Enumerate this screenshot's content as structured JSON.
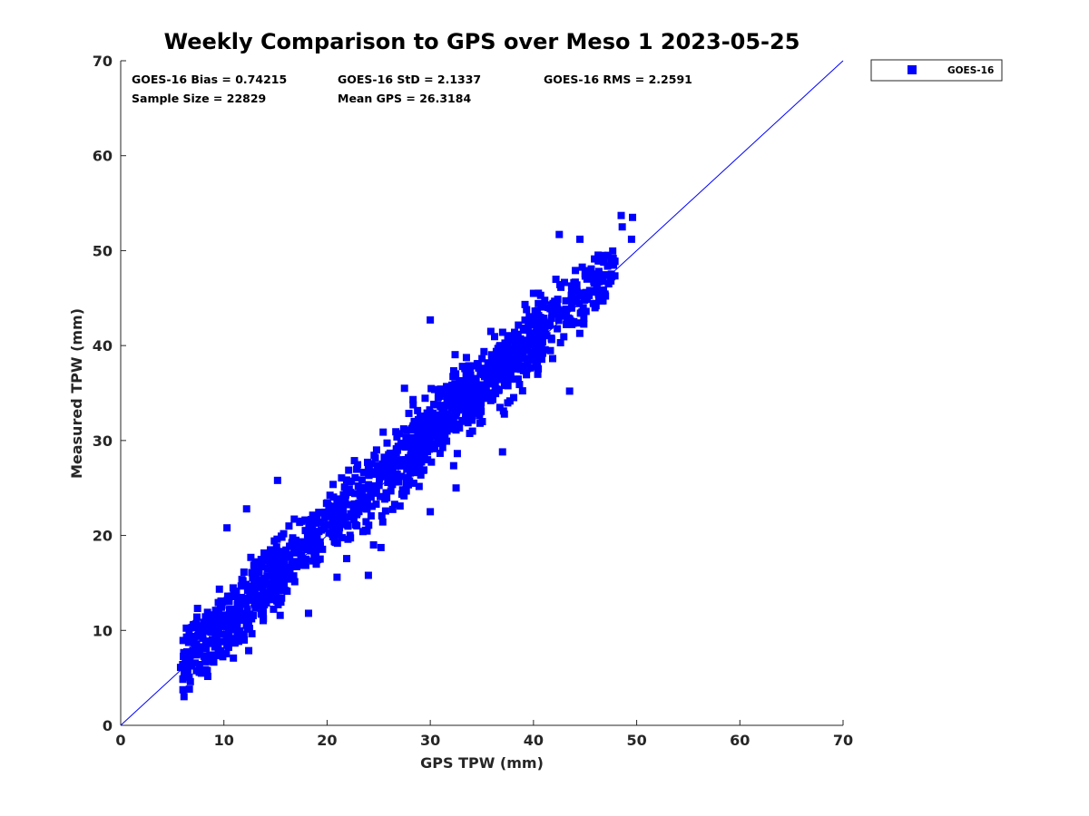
{
  "chart_data": {
    "type": "scatter",
    "title": "Weekly Comparison to GPS over Meso 1 2023-05-25",
    "xlabel": "GPS TPW (mm)",
    "ylabel": "Measured TPW (mm)",
    "xlim": [
      0,
      70
    ],
    "ylim": [
      0,
      70
    ],
    "xticks": [
      "0",
      "10",
      "20",
      "30",
      "40",
      "50",
      "60",
      "70"
    ],
    "yticks": [
      "0",
      "10",
      "20",
      "30",
      "40",
      "50",
      "60",
      "70"
    ],
    "grid": false,
    "legend_position": "top-right, outside axes",
    "series": [
      {
        "name": "GOES-16",
        "marker": "square",
        "color": "#0000ff",
        "cloud": {
          "x_range": [
            4.5,
            50.5
          ],
          "center_line": "y = x + 0.74",
          "spread_std": 2.13,
          "outliers": [
            [
              5.8,
              6.1
            ],
            [
              6.5,
              5.9
            ],
            [
              10.3,
              20.8
            ],
            [
              12.2,
              22.8
            ],
            [
              15.2,
              25.8
            ],
            [
              18.2,
              11.8
            ],
            [
              24.0,
              15.8
            ],
            [
              24.5,
              19.0
            ],
            [
              27.5,
              35.5
            ],
            [
              28.5,
              29.0
            ],
            [
              30.0,
              42.7
            ],
            [
              30.0,
              22.5
            ],
            [
              32.5,
              25.0
            ],
            [
              37.0,
              28.8
            ],
            [
              40.0,
              45.5
            ],
            [
              42.5,
              51.7
            ],
            [
              43.5,
              35.2
            ],
            [
              44.5,
              51.2
            ],
            [
              48.5,
              53.7
            ],
            [
              48.6,
              52.5
            ],
            [
              49.5,
              51.2
            ],
            [
              49.6,
              53.5
            ],
            [
              47.5,
              46.8
            ],
            [
              46.0,
              44.2
            ]
          ]
        }
      }
    ],
    "reference_line": {
      "label": "1:1",
      "from": [
        0,
        0
      ],
      "to": [
        70,
        70
      ],
      "color": "#0000ff"
    },
    "stats": {
      "bias": "GOES-16 Bias = 0.74215",
      "std": "GOES-16 StD = 2.1337",
      "rms": "GOES-16 RMS = 2.2591",
      "sample_size": "Sample Size = 22829",
      "mean_gps": "Mean GPS = 26.3184"
    }
  }
}
